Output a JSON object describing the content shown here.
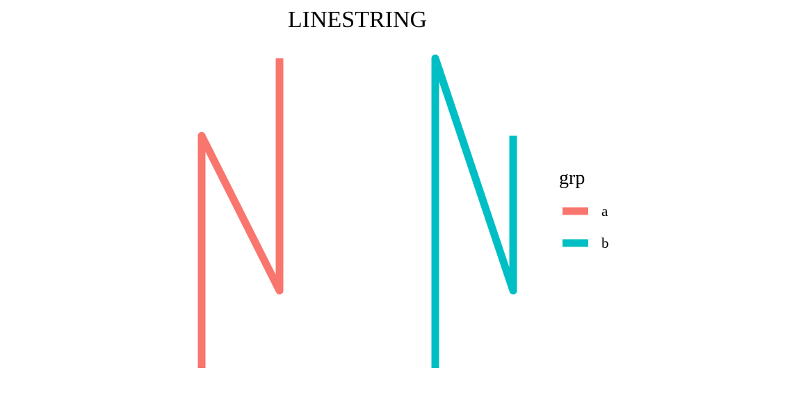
{
  "chart_data": {
    "type": "line",
    "title": "LINESTRING",
    "xlabel": "",
    "ylabel": "",
    "grid": false,
    "axes_visible": false,
    "xlim": [
      0,
      4
    ],
    "ylim": [
      0,
      4
    ],
    "legend": {
      "title": "grp",
      "position": "right"
    },
    "series": [
      {
        "name": "a",
        "color": "#F8766D",
        "points": [
          {
            "x": 0,
            "y": 0
          },
          {
            "x": 0,
            "y": 3
          },
          {
            "x": 1,
            "y": 1
          },
          {
            "x": 1,
            "y": 4
          }
        ]
      },
      {
        "name": "b",
        "color": "#00BFC4",
        "points": [
          {
            "x": 3,
            "y": 0
          },
          {
            "x": 3,
            "y": 4
          },
          {
            "x": 4,
            "y": 1
          },
          {
            "x": 4,
            "y": 3
          }
        ]
      }
    ]
  }
}
